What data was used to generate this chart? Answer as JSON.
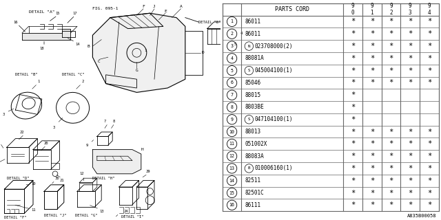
{
  "bg_color": "#ffffff",
  "col_header": "PARTS CORD",
  "year_cols": [
    "9\n0",
    "9\n1",
    "9\n2",
    "9\n3",
    "9\n4"
  ],
  "rows": [
    {
      "num": 1,
      "prefix": "",
      "part": "86011",
      "marks": [
        1,
        1,
        1,
        1,
        1
      ]
    },
    {
      "num": 2,
      "prefix": "",
      "part": "86011",
      "marks": [
        1,
        1,
        1,
        1,
        1
      ]
    },
    {
      "num": 3,
      "prefix": "N",
      "part": "023708000(2)",
      "marks": [
        1,
        1,
        1,
        1,
        1
      ]
    },
    {
      "num": 4,
      "prefix": "",
      "part": "88081A",
      "marks": [
        1,
        1,
        1,
        1,
        1
      ]
    },
    {
      "num": 5,
      "prefix": "S",
      "part": "045004100(1)",
      "marks": [
        1,
        1,
        1,
        1,
        1
      ]
    },
    {
      "num": 6,
      "prefix": "",
      "part": "85046",
      "marks": [
        1,
        1,
        1,
        1,
        1
      ]
    },
    {
      "num": 7,
      "prefix": "",
      "part": "88015",
      "marks": [
        1,
        0,
        0,
        0,
        0
      ]
    },
    {
      "num": 8,
      "prefix": "",
      "part": "8803BE",
      "marks": [
        1,
        0,
        0,
        0,
        0
      ]
    },
    {
      "num": 9,
      "prefix": "S",
      "part": "047104100(1)",
      "marks": [
        1,
        0,
        0,
        0,
        0
      ]
    },
    {
      "num": 10,
      "prefix": "",
      "part": "88013",
      "marks": [
        1,
        1,
        1,
        1,
        1
      ]
    },
    {
      "num": 11,
      "prefix": "",
      "part": "051002X",
      "marks": [
        1,
        1,
        1,
        1,
        1
      ]
    },
    {
      "num": 12,
      "prefix": "",
      "part": "88083A",
      "marks": [
        1,
        1,
        1,
        1,
        1
      ]
    },
    {
      "num": 13,
      "prefix": "B",
      "part": "010006160(1)",
      "marks": [
        1,
        1,
        1,
        1,
        1
      ]
    },
    {
      "num": 14,
      "prefix": "",
      "part": "82511",
      "marks": [
        1,
        1,
        1,
        1,
        1
      ]
    },
    {
      "num": 15,
      "prefix": "",
      "part": "82501C",
      "marks": [
        1,
        1,
        1,
        1,
        1
      ]
    },
    {
      "num": 16,
      "prefix": "",
      "part": "86111",
      "marks": [
        1,
        1,
        1,
        1,
        1
      ]
    }
  ],
  "footer": "A835B00058",
  "line_color": "#000000",
  "text_color": "#000000",
  "table_line_color": "#666666"
}
